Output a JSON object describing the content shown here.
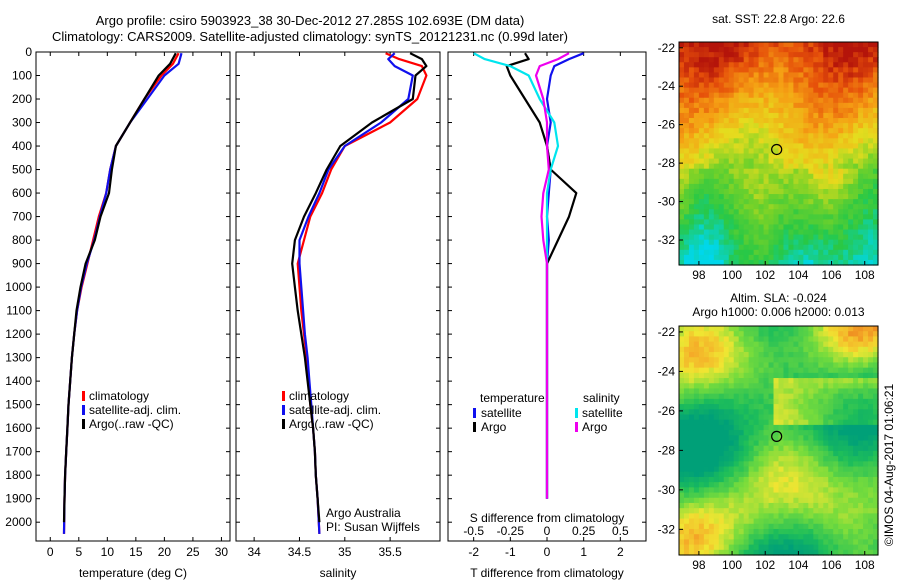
{
  "header": {
    "line1": "Argo profile: csiro 5903923_38 30-Dec-2012 27.285S 102.693E (DM data)",
    "line2": "Climatology: CARS2009. Satellite-adjusted climatology: synTS_20121231.nc (0.99d later)"
  },
  "side_stamp": "©IMOS 04-Aug-2017 01:06:21",
  "colors": {
    "red": "#ff0000",
    "blue": "#1010ee",
    "black": "#000000",
    "cyan": "#00e5ee",
    "magenta": "#ee00ee"
  },
  "depth_ticks": [
    0,
    100,
    200,
    300,
    400,
    500,
    600,
    700,
    800,
    900,
    1000,
    1100,
    1200,
    1300,
    1400,
    1500,
    1600,
    1700,
    1800,
    1900,
    2000
  ],
  "chart_data": [
    {
      "id": "temperature",
      "type": "line",
      "xlabel": "temperature (deg C)",
      "ylabel": "",
      "xlim": [
        -2.5,
        31.5
      ],
      "ylim": [
        2080,
        0
      ],
      "xticks": [
        0,
        5,
        10,
        15,
        20,
        25,
        30
      ],
      "legend": {
        "placement": "bottom-center",
        "entries": [
          "climatology",
          "satellite-adj. clim.",
          "Argo(..raw -QC)"
        ]
      },
      "series": [
        {
          "name": "climatology",
          "color": "red",
          "x": [
            22.5,
            21.5,
            19.5,
            16.5,
            14.0,
            11.5,
            10.5,
            9.8,
            8.5,
            7.5,
            6.5,
            5.5,
            4.7,
            4.2,
            3.8,
            3.5,
            3.2,
            3.0,
            2.8,
            2.6,
            2.5,
            2.4
          ],
          "y": [
            5,
            50,
            100,
            200,
            300,
            400,
            500,
            600,
            700,
            800,
            900,
            1000,
            1100,
            1200,
            1300,
            1400,
            1500,
            1600,
            1700,
            1800,
            1900,
            2050
          ]
        },
        {
          "name": "satellite-adj. clim.",
          "color": "blue",
          "x": [
            23.0,
            22.5,
            20.0,
            17.0,
            14.0,
            11.5,
            10.5,
            9.8,
            8.7,
            7.7,
            6.4,
            5.4,
            4.7,
            4.2,
            3.8,
            3.5,
            3.2,
            3.0,
            2.8,
            2.6,
            2.5,
            2.4
          ],
          "y": [
            5,
            50,
            100,
            200,
            300,
            400,
            500,
            600,
            700,
            800,
            900,
            1000,
            1100,
            1200,
            1300,
            1400,
            1500,
            1600,
            1700,
            1800,
            1900,
            2050
          ]
        },
        {
          "name": "Argo(..raw -QC)",
          "color": "black",
          "x": [
            22.0,
            21.0,
            19.0,
            16.5,
            14.0,
            11.5,
            10.8,
            10.3,
            8.8,
            7.8,
            6.2,
            5.3,
            4.6,
            4.2,
            3.8,
            3.5,
            3.2,
            3.0,
            2.8,
            2.6,
            2.5,
            2.4
          ],
          "y": [
            5,
            50,
            100,
            200,
            300,
            400,
            500,
            600,
            700,
            800,
            900,
            1000,
            1100,
            1200,
            1300,
            1400,
            1500,
            1600,
            1700,
            1800,
            1900,
            2000
          ]
        }
      ],
      "note_lines": []
    },
    {
      "id": "salinity",
      "type": "line",
      "xlabel": "salinity",
      "ylabel": "",
      "xlim": [
        33.8,
        36.05
      ],
      "ylim": [
        2080,
        0
      ],
      "xticks": [
        34,
        34.5,
        35,
        35.5
      ],
      "legend": {
        "placement": "bottom-center",
        "entries": [
          "climatology",
          "satellite-adj. clim.",
          "Argo(..raw -QC)"
        ]
      },
      "series": [
        {
          "name": "climatology",
          "color": "red",
          "x": [
            35.45,
            35.6,
            35.85,
            35.9,
            35.8,
            35.5,
            35.0,
            34.85,
            34.75,
            34.62,
            34.55,
            34.48,
            34.5,
            34.52,
            34.55,
            34.58,
            34.6,
            34.62,
            34.65,
            34.67,
            34.68,
            34.7,
            34.72
          ],
          "y": [
            5,
            30,
            60,
            100,
            200,
            300,
            400,
            500,
            600,
            700,
            800,
            900,
            1000,
            1100,
            1200,
            1300,
            1400,
            1500,
            1600,
            1700,
            1800,
            1900,
            2050
          ]
        },
        {
          "name": "satellite-adj. clim.",
          "color": "blue",
          "x": [
            35.55,
            35.48,
            35.55,
            35.75,
            35.7,
            35.4,
            35.0,
            34.82,
            34.72,
            34.6,
            34.5,
            34.5,
            34.52,
            34.54,
            34.56,
            34.59,
            34.61,
            34.63,
            34.65,
            34.67,
            34.68,
            34.7,
            34.72
          ],
          "y": [
            5,
            30,
            60,
            100,
            200,
            300,
            400,
            500,
            600,
            700,
            800,
            900,
            1000,
            1100,
            1200,
            1300,
            1400,
            1500,
            1600,
            1700,
            1800,
            1900,
            2050
          ]
        },
        {
          "name": "Argo(..raw -QC)",
          "color": "black",
          "x": [
            35.72,
            35.85,
            35.9,
            35.78,
            35.75,
            35.3,
            34.95,
            34.8,
            34.68,
            34.55,
            34.45,
            34.42,
            34.45,
            34.48,
            34.52,
            34.56,
            34.59,
            34.62,
            34.65,
            34.67,
            34.68,
            34.7,
            34.72
          ],
          "y": [
            5,
            30,
            60,
            100,
            200,
            300,
            400,
            500,
            600,
            700,
            800,
            900,
            1000,
            1100,
            1200,
            1300,
            1400,
            1500,
            1600,
            1700,
            1800,
            1900,
            2000
          ]
        }
      ],
      "note_lines": [
        "Argo Australia",
        "PI: Susan Wijffels"
      ]
    },
    {
      "id": "difference",
      "type": "line",
      "xlabel": "T difference from climatology",
      "xlabel_top": "S difference from climatology",
      "ylabel": "",
      "xlim": [
        -2.7,
        2.7
      ],
      "ylim": [
        2080,
        0
      ],
      "xticks": [
        -2,
        -1,
        0,
        1,
        2
      ],
      "sticks": [
        "-0.5",
        "-0.25",
        "0",
        "0.25",
        "0.5"
      ],
      "legend": {
        "placement": "bottom-center",
        "temperature_title": "temperature",
        "salinity_title": "salinity",
        "temperature_entries": [
          "satellite",
          "Argo"
        ],
        "salinity_entries": [
          "satellite",
          "Argo"
        ]
      },
      "series": [
        {
          "name": "satellite",
          "color": "blue",
          "x": [
            1.0,
            0.6,
            0.2,
            0.1,
            0.0,
            0.1,
            0.0,
            0.1,
            0.05,
            0.0,
            0.05,
            0.0,
            0.0,
            0.0,
            0.0,
            0.0,
            0.0,
            0.0,
            0.0,
            0.0,
            0.0,
            0.0
          ],
          "y": [
            5,
            30,
            60,
            100,
            200,
            300,
            400,
            500,
            600,
            700,
            800,
            900,
            1000,
            1100,
            1200,
            1300,
            1400,
            1500,
            1600,
            1700,
            1800,
            1900
          ]
        },
        {
          "name": "Argo",
          "color": "black",
          "x": [
            -0.6,
            -0.5,
            -1.1,
            -1.0,
            -0.6,
            -0.2,
            0.0,
            0.1,
            0.8,
            0.6,
            0.3,
            0.0,
            0.0,
            0.0,
            0.0,
            0.0,
            0.0,
            0.0,
            0.0,
            0.0,
            0.0,
            0.0
          ],
          "y": [
            5,
            30,
            60,
            100,
            200,
            300,
            400,
            500,
            600,
            700,
            800,
            900,
            1000,
            1100,
            1200,
            1300,
            1400,
            1500,
            1600,
            1700,
            1800,
            1900
          ]
        },
        {
          "name": "satellite",
          "color": "cyan",
          "x": [
            -2.0,
            -1.7,
            -1.0,
            -0.5,
            -0.2,
            0.2,
            0.3,
            0.1,
            0.0,
            0.0,
            0.0,
            0.0,
            0.0,
            0.0,
            0.0,
            0.0,
            0.0,
            0.0,
            0.0,
            0.0,
            0.0,
            0.0
          ],
          "y": [
            5,
            30,
            60,
            100,
            200,
            300,
            400,
            500,
            600,
            700,
            800,
            900,
            1000,
            1100,
            1200,
            1300,
            1400,
            1500,
            1600,
            1700,
            1800,
            1900
          ]
        },
        {
          "name": "Argo",
          "color": "magenta",
          "x": [
            0.6,
            0.3,
            -0.2,
            -0.3,
            -0.1,
            0.0,
            0.0,
            0.05,
            -0.1,
            -0.15,
            -0.1,
            0.0,
            0.0,
            0.0,
            0.0,
            0.0,
            0.0,
            0.0,
            0.0,
            0.0,
            0.0,
            0.0
          ],
          "y": [
            5,
            30,
            60,
            100,
            200,
            300,
            400,
            500,
            600,
            700,
            800,
            900,
            1000,
            1100,
            1200,
            1300,
            1400,
            1500,
            1600,
            1700,
            1800,
            1900
          ]
        }
      ],
      "note_lines": []
    },
    {
      "id": "sst_map",
      "type": "heatmap",
      "title": "sat. SST: 22.8  Argo: 22.6",
      "xticks": [
        98,
        100,
        102,
        104,
        106,
        108
      ],
      "yticks": [
        -22,
        -24,
        -26,
        -28,
        -30,
        -32
      ],
      "xlim": [
        96.8,
        108.8
      ],
      "ylim": [
        -33.3,
        -21.7
      ],
      "marker": [
        102.69,
        -27.29
      ],
      "colorscale": "sst"
    },
    {
      "id": "sla_map",
      "type": "heatmap",
      "title": "Altim. SLA: -0.024",
      "subtitle": "Argo h1000: 0.006  h2000: 0.013",
      "xticks": [
        98,
        100,
        102,
        104,
        106,
        108
      ],
      "yticks": [
        -22,
        -24,
        -26,
        -28,
        -30,
        -32
      ],
      "xlim": [
        96.8,
        108.8
      ],
      "ylim": [
        -33.3,
        -21.7
      ],
      "marker": [
        102.69,
        -27.29
      ],
      "colorscale": "sla"
    }
  ]
}
